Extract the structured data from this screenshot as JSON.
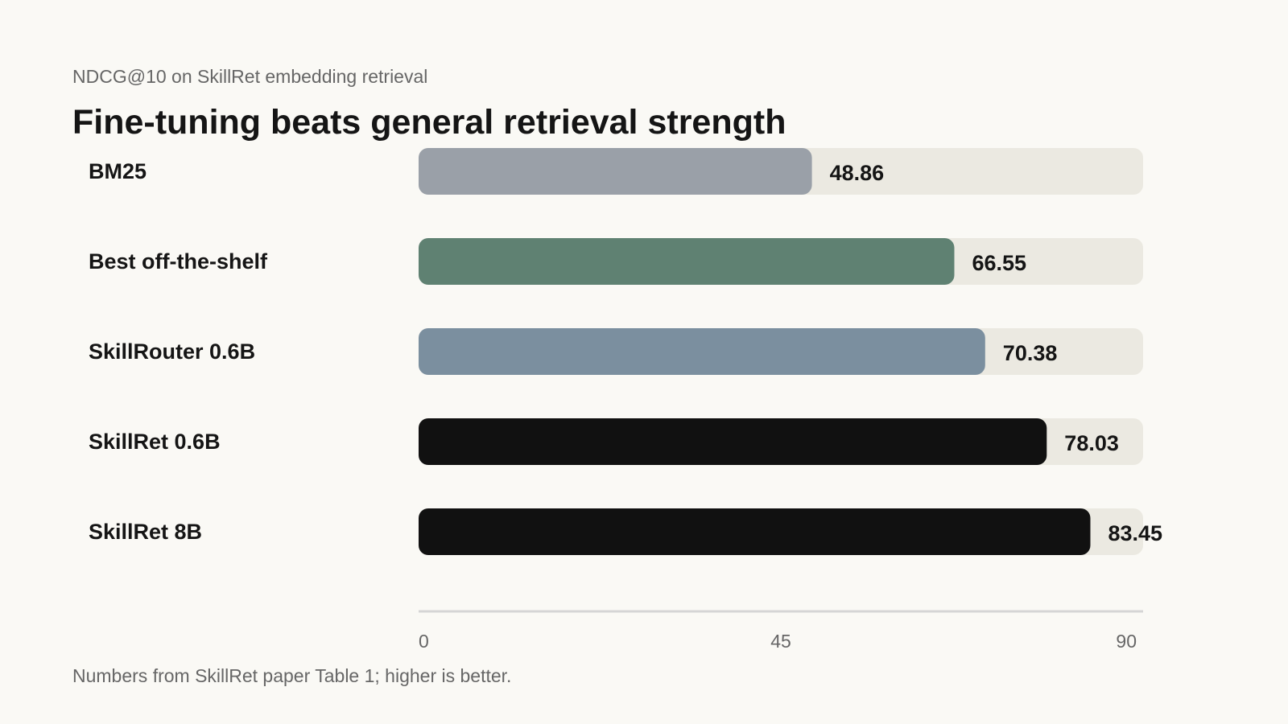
{
  "header": {
    "subtitle": "NDCG@10 on SkillRet embedding retrieval",
    "title": "Fine-tuning beats general retrieval strength"
  },
  "footnote": "Numbers from SkillRet paper Table 1; higher is better.",
  "colors": {
    "background": "#faf9f5",
    "track": "#ebe9e1",
    "axis": "#d5d5d5",
    "BM25": "#9aa0a8",
    "Best off-the-shelf": "#5f8172",
    "SkillRouter 0.6B": "#7b8f9f",
    "SkillRet 0.6B": "#111111",
    "SkillRet 8B": "#111111"
  },
  "chart_data": {
    "type": "bar",
    "orientation": "horizontal",
    "title": "Fine-tuning beats general retrieval strength",
    "subtitle": "NDCG@10 on SkillRet embedding retrieval",
    "categories": [
      "BM25",
      "Best off-the-shelf",
      "SkillRouter 0.6B",
      "SkillRet 0.6B",
      "SkillRet 8B"
    ],
    "values": [
      48.86,
      66.55,
      70.38,
      78.03,
      83.45
    ],
    "value_labels": [
      "48.86",
      "66.55",
      "70.38",
      "78.03",
      "83.45"
    ],
    "bar_colors": [
      "#9aa0a8",
      "#5f8172",
      "#7b8f9f",
      "#111111",
      "#111111"
    ],
    "xlim": [
      0,
      90
    ],
    "xticks": [
      0,
      45,
      90
    ],
    "xtick_labels": [
      "0",
      "45",
      "90"
    ],
    "grid": false,
    "legend": "none"
  }
}
